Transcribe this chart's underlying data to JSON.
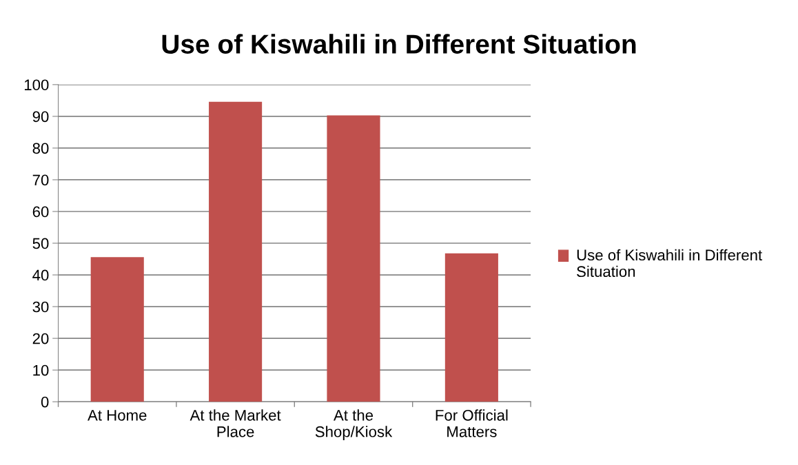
{
  "chart_data": {
    "type": "bar",
    "title": "Use of Kiswahili in Different Situation",
    "categories": [
      "At Home",
      "At the Market\nPlace",
      "At the\nShop/Kiosk",
      "For Official\nMatters"
    ],
    "series": [
      {
        "name": "Use of Kiswahili in Different Situation",
        "color": "#c0504d",
        "values": [
          45.6,
          94.6,
          90.3,
          46.8
        ]
      }
    ],
    "ylim": [
      0,
      100
    ],
    "yticks": [
      0,
      10,
      20,
      30,
      40,
      50,
      60,
      70,
      80,
      90,
      100
    ],
    "grid": "y",
    "legend": "right"
  }
}
